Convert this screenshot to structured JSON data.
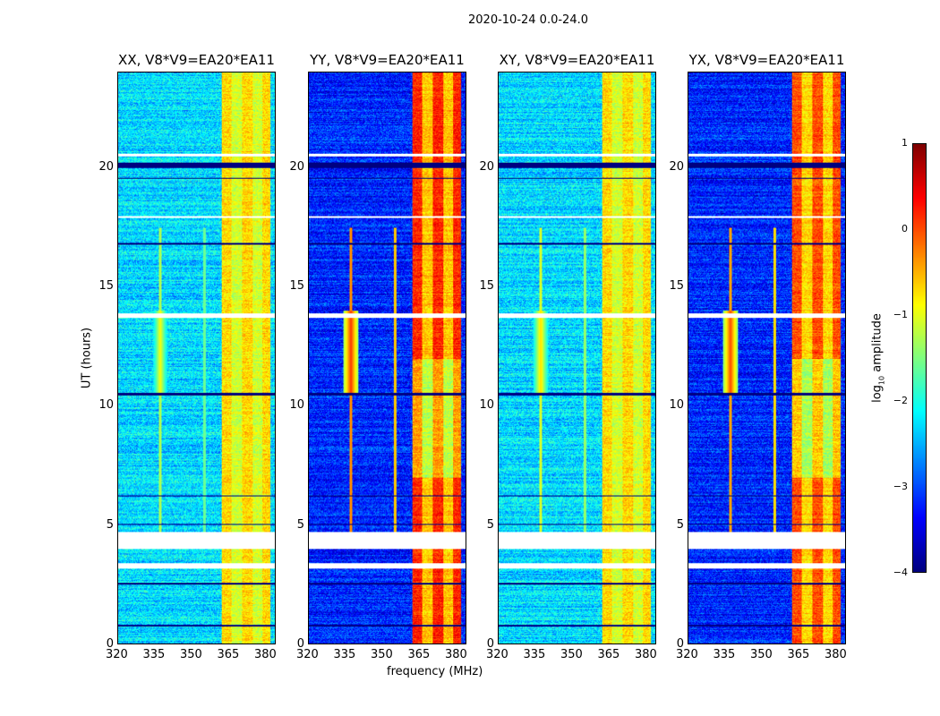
{
  "chart_data": {
    "type": "heatmap",
    "title": "2020-10-24 0.0-24.0",
    "xlabel": "frequency (MHz)",
    "ylabel": "UT (hours)",
    "xlim": [
      320,
      384
    ],
    "ylim": [
      0,
      24
    ],
    "xticks": [
      320,
      335,
      350,
      365,
      380
    ],
    "yticks": [
      0,
      5,
      10,
      15,
      20
    ],
    "colorbar": {
      "label": "log10 amplitude",
      "label_main": "log",
      "label_sub": "10",
      "label_rest": " amplitude",
      "range": [
        -4,
        1
      ],
      "ticks": [
        "1",
        "0",
        "−1",
        "−2",
        "−3",
        "−4"
      ],
      "cmap": "jet"
    },
    "panels": [
      {
        "title": "XX, V8*V9=EA20*EA11",
        "background": -2.3,
        "band": -1.1,
        "band_hot": -0.7,
        "rfi": -1.3
      },
      {
        "title": "YY, V8*V9=EA20*EA11",
        "background": -3.2,
        "band": -0.6,
        "band_hot": 0.2,
        "rfi": -0.3
      },
      {
        "title": "XY, V8*V9=EA20*EA11",
        "background": -2.3,
        "band": -1.1,
        "band_hot": -0.7,
        "rfi": -1.1
      },
      {
        "title": "YX, V8*V9=EA20*EA11",
        "background": -3.2,
        "band": -0.7,
        "band_hot": 0.0,
        "rfi": -0.4
      }
    ],
    "band_range_mhz": [
      362,
      382
    ],
    "rfi_lines_mhz": [
      337,
      355
    ],
    "flagged_hours": [
      [
        4.0,
        4.7
      ],
      [
        3.15,
        3.4
      ],
      [
        13.7,
        13.9
      ],
      [
        20.5,
        20.6
      ],
      [
        17.9,
        18.0
      ]
    ],
    "dropout_hours": [
      [
        20.0,
        20.25
      ],
      [
        19.55,
        19.6
      ],
      [
        10.45,
        10.55
      ],
      [
        6.2,
        6.25
      ],
      [
        5.0,
        5.05
      ],
      [
        2.5,
        2.55
      ],
      [
        0.75,
        0.8
      ],
      [
        16.8,
        16.85
      ]
    ]
  }
}
